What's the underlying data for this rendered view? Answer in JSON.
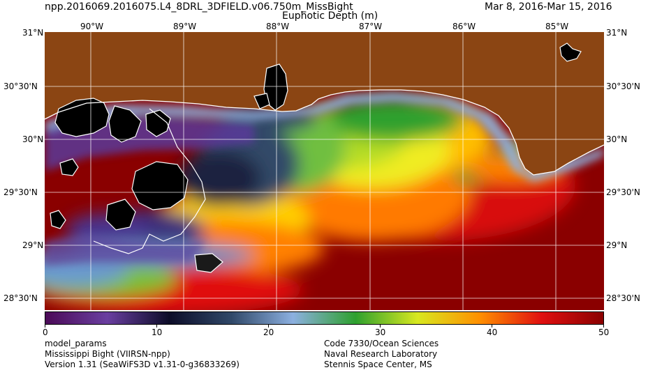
{
  "header": {
    "title": "npp.2016069.2016075.L4_8DRL_3DFIELD.v06.750m_MissBight",
    "subtitle": "Euphotic Depth (m)",
    "date_range": "Mar  8, 2016-Mar 15, 2016"
  },
  "longitude_labels": [
    "90°W",
    "89°W",
    "88°W",
    "87°W",
    "86°W",
    "85°W"
  ],
  "latitude_labels": [
    "31°N",
    "30°30'N",
    "30°N",
    "29°30'N",
    "29°N",
    "28°30'N"
  ],
  "colorbar": {
    "min": 0,
    "max": 50,
    "tick_labels": [
      "0",
      "10",
      "20",
      "30",
      "40",
      "50"
    ],
    "colors": [
      "#4b0a57",
      "#6a3fa0",
      "#0c0c28",
      "#304868",
      "#8cb0e0",
      "#2ea02e",
      "#d8e820",
      "#ff9000",
      "#e01010",
      "#8a0000"
    ]
  },
  "map": {
    "land_color": "#8b4513",
    "nodata_color": "#000000",
    "coast_color": "#ffffff",
    "grid_color": "#ffffff"
  },
  "footer": {
    "left_lines": [
      "model_params",
      "Mississippi Bight (VIIRSN-npp)",
      "Version 1.31 (SeaWiFS3D v1.31-0-g36833269)"
    ],
    "right_lines": [
      "Code 7330/Ocean Sciences",
      "Naval Research Laboratory",
      "Stennis Space Center, MS"
    ]
  }
}
